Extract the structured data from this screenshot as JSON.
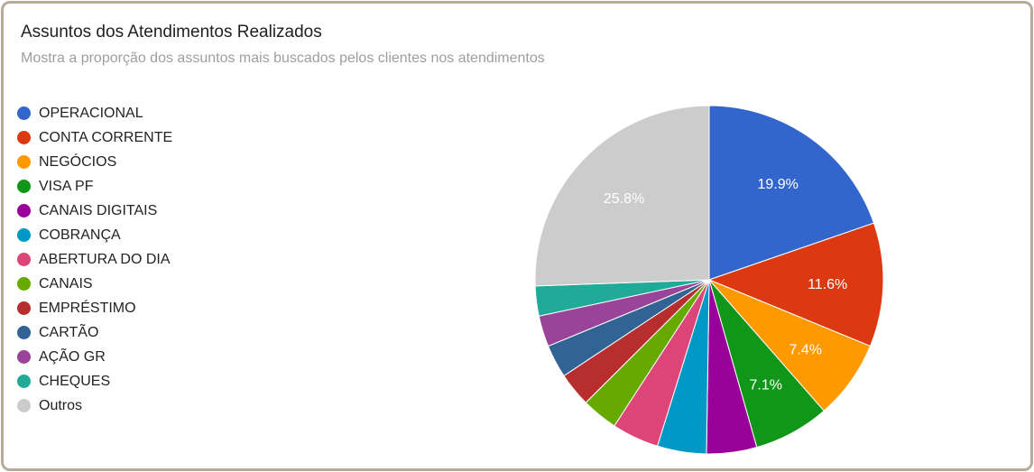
{
  "chart_data": {
    "type": "pie",
    "title": "Assuntos dos Atendimentos Realizados",
    "subtitle": "Mostra a proporção dos assuntos mais buscados pelos clientes nos atendimentos",
    "legend_position": "left",
    "slices": [
      {
        "label": "OPERACIONAL",
        "value": 19.9,
        "color": "#3366cc",
        "data_label": "19.9%"
      },
      {
        "label": "CONTA CORRENTE",
        "value": 11.6,
        "color": "#dc3912",
        "data_label": "11.6%"
      },
      {
        "label": "NEGÓCIOS",
        "value": 7.4,
        "color": "#ff9900",
        "data_label": "7.4%"
      },
      {
        "label": "VISA PF",
        "value": 7.1,
        "color": "#109618",
        "data_label": "7.1%"
      },
      {
        "label": "CANAIS DIGITAIS",
        "value": 4.7,
        "color": "#990099",
        "data_label": ""
      },
      {
        "label": "COBRANÇA",
        "value": 4.6,
        "color": "#0099c6",
        "data_label": ""
      },
      {
        "label": "ABERTURA DO DIA",
        "value": 4.4,
        "color": "#dd4477",
        "data_label": ""
      },
      {
        "label": "CANAIS",
        "value": 3.4,
        "color": "#66aa00",
        "data_label": ""
      },
      {
        "label": "EMPRÉSTIMO",
        "value": 3.2,
        "color": "#b82e2e",
        "data_label": ""
      },
      {
        "label": "CARTÃO",
        "value": 3.1,
        "color": "#316395",
        "data_label": ""
      },
      {
        "label": "AÇÃO GR",
        "value": 2.9,
        "color": "#994499",
        "data_label": ""
      },
      {
        "label": "CHEQUES",
        "value": 2.8,
        "color": "#22aa99",
        "data_label": ""
      },
      {
        "label": "Outros",
        "value": 25.8,
        "color": "#cccccc",
        "data_label": "25.8%"
      }
    ]
  }
}
